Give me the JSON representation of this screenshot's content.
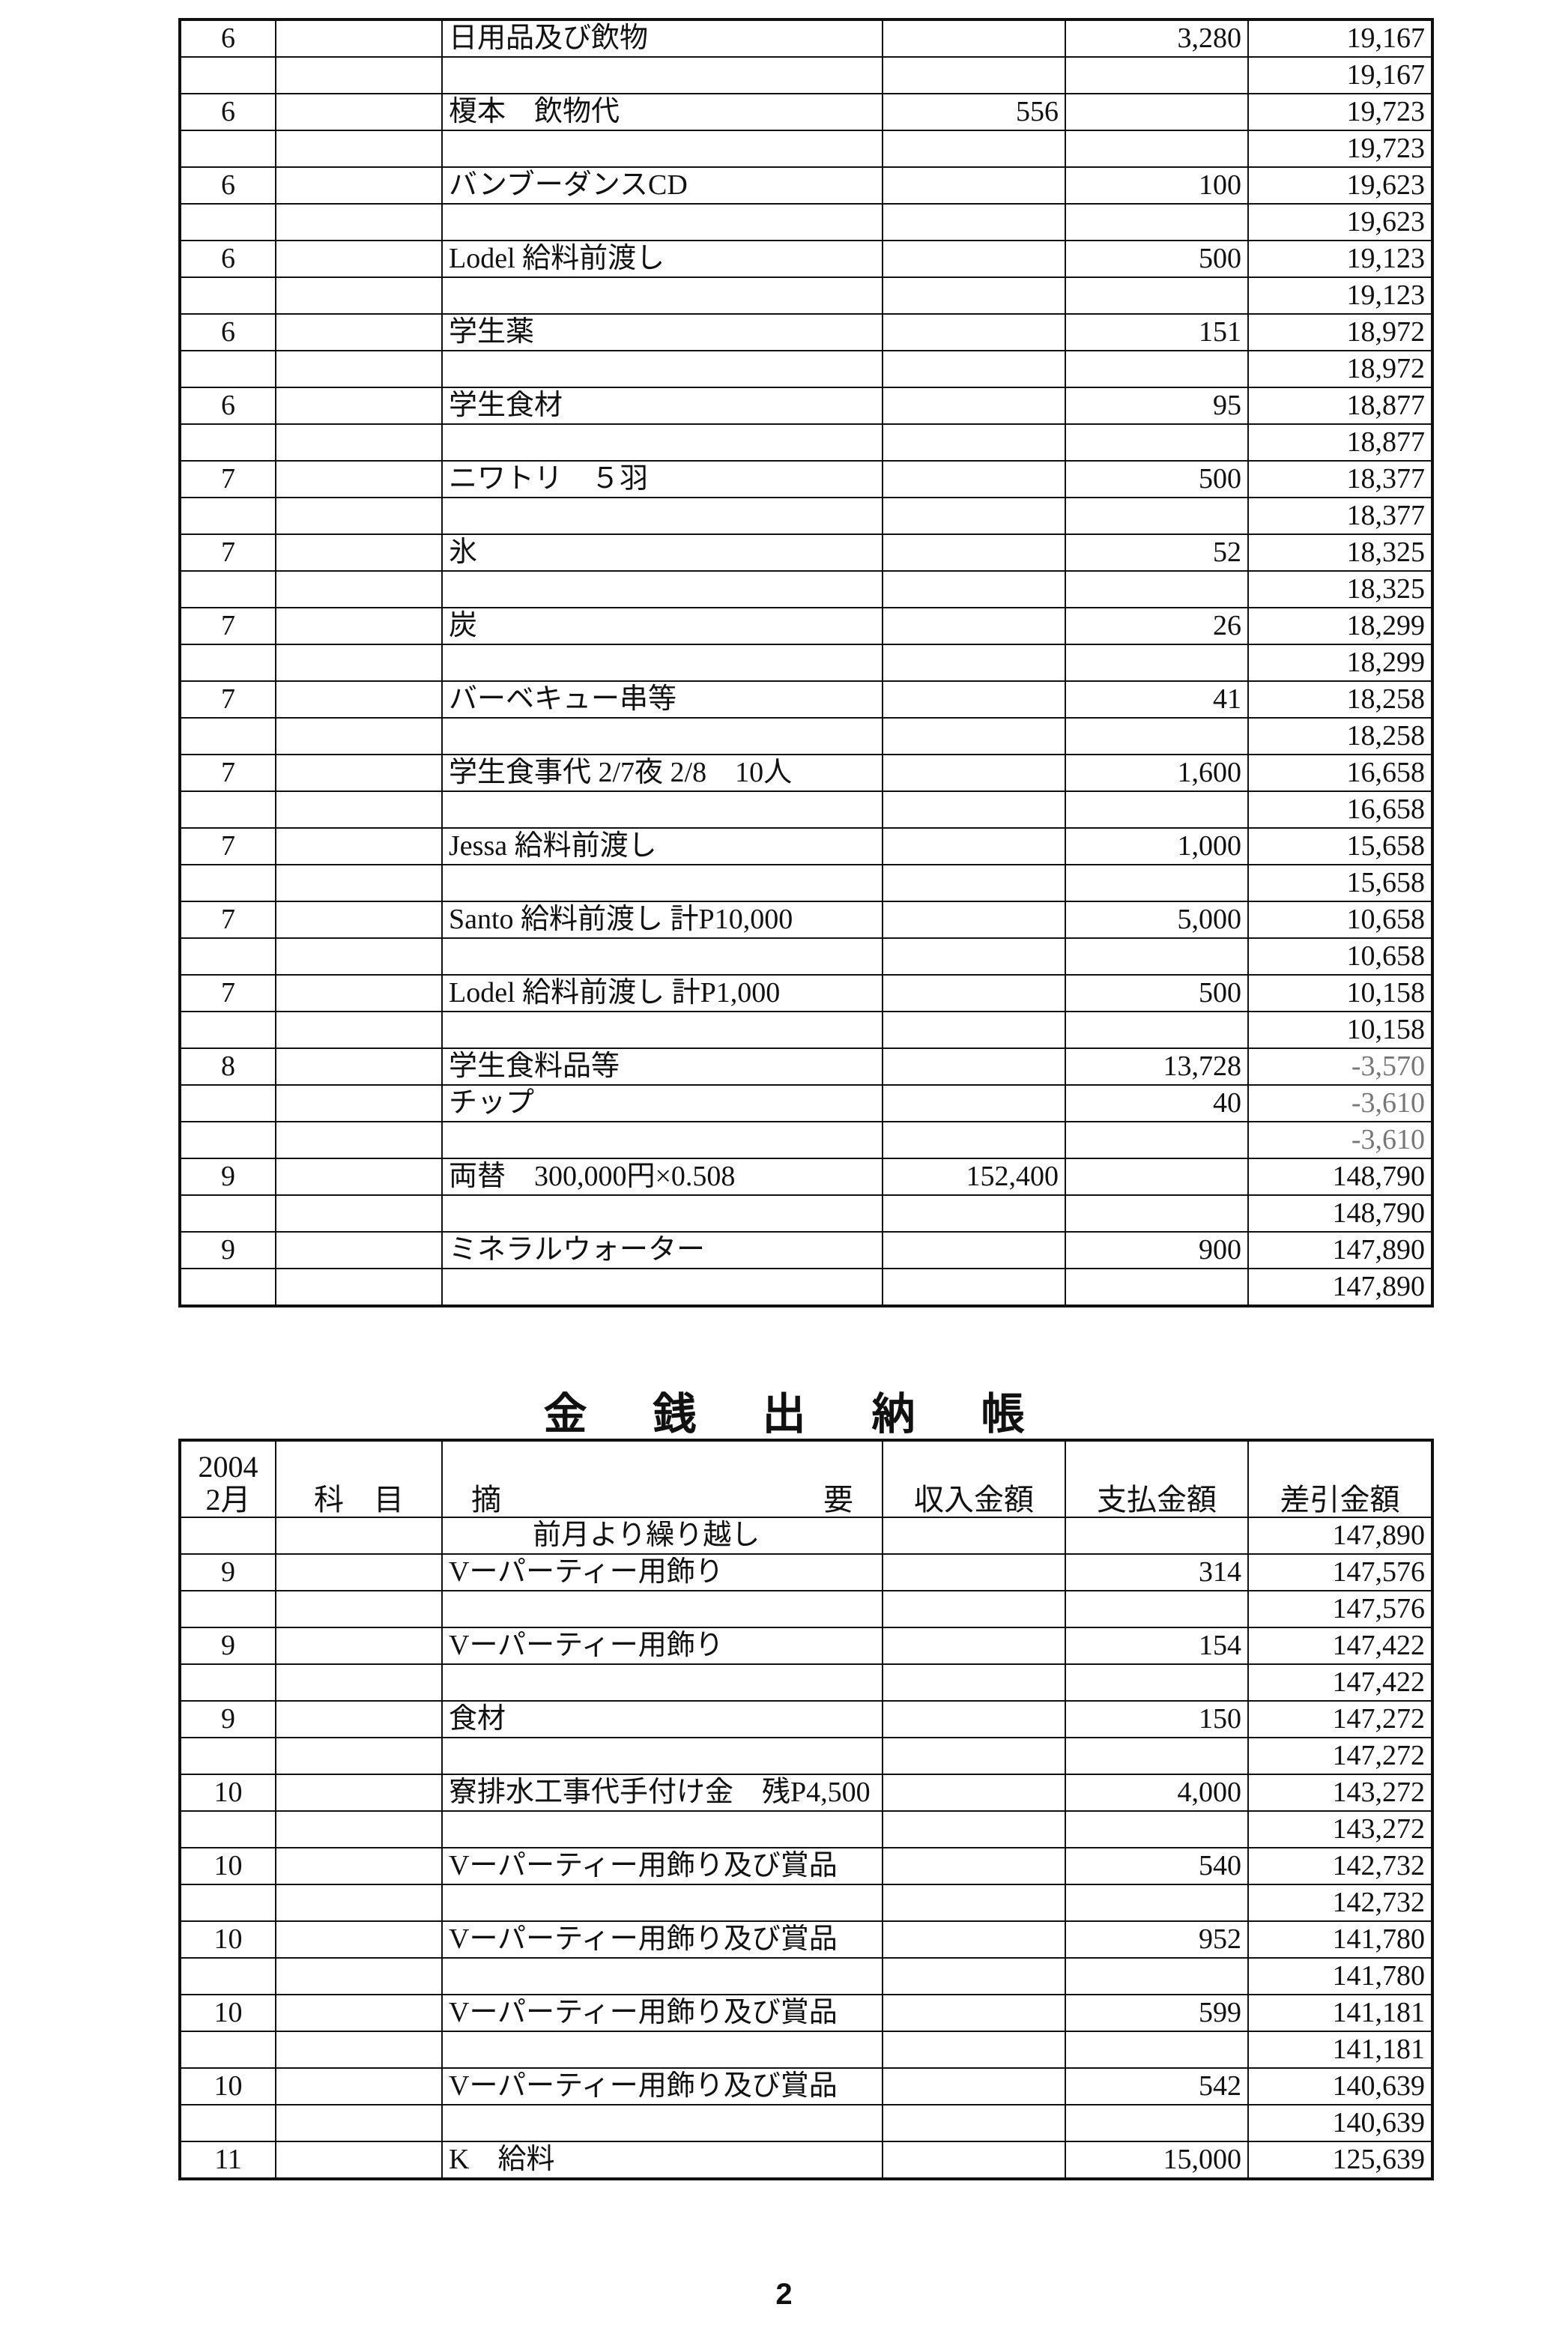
{
  "ledger_top": {
    "rows": [
      {
        "day": "6",
        "desc": "日用品及び飲物",
        "payment": "3,280",
        "balance": "19,167"
      },
      {
        "balance": "19,167"
      },
      {
        "day": "6",
        "desc": "榎本　飲物代",
        "income": "556",
        "balance": "19,723"
      },
      {
        "balance": "19,723"
      },
      {
        "day": "6",
        "desc": "バンブーダンスCD",
        "payment": "100",
        "balance": "19,623"
      },
      {
        "balance": "19,623"
      },
      {
        "day": "6",
        "desc": "Lodel 給料前渡し",
        "payment": "500",
        "balance": "19,123"
      },
      {
        "balance": "19,123"
      },
      {
        "day": "6",
        "desc": "学生薬",
        "payment": "151",
        "balance": "18,972"
      },
      {
        "balance": "18,972"
      },
      {
        "day": "6",
        "desc": "学生食材",
        "payment": "95",
        "balance": "18,877"
      },
      {
        "balance": "18,877"
      },
      {
        "day": "7",
        "desc": "ニワトリ　５羽",
        "payment": "500",
        "balance": "18,377"
      },
      {
        "balance": "18,377"
      },
      {
        "day": "7",
        "desc": "氷",
        "payment": "52",
        "balance": "18,325"
      },
      {
        "balance": "18,325"
      },
      {
        "day": "7",
        "desc": "炭",
        "payment": "26",
        "balance": "18,299"
      },
      {
        "balance": "18,299"
      },
      {
        "day": "7",
        "desc": "バーベキュー串等",
        "payment": "41",
        "balance": "18,258"
      },
      {
        "balance": "18,258"
      },
      {
        "day": "7",
        "desc": "学生食事代 2/7夜 2/8　10人",
        "payment": "1,600",
        "balance": "16,658"
      },
      {
        "balance": "16,658"
      },
      {
        "day": "7",
        "desc": "Jessa 給料前渡し",
        "payment": "1,000",
        "balance": "15,658"
      },
      {
        "balance": "15,658"
      },
      {
        "day": "7",
        "desc": "Santo 給料前渡し 計P10,000",
        "payment": "5,000",
        "balance": "10,658"
      },
      {
        "balance": "10,658"
      },
      {
        "day": "7",
        "desc": "Lodel 給料前渡し 計P1,000",
        "payment": "500",
        "balance": "10,158"
      },
      {
        "balance": "10,158"
      },
      {
        "day": "8",
        "desc": "学生食料品等",
        "payment": "13,728",
        "balance": "-3,570"
      },
      {
        "desc": "チップ",
        "payment": "40",
        "balance": "-3,610"
      },
      {
        "balance": "-3,610"
      },
      {
        "day": "9",
        "desc": "両替　300,000円×0.508",
        "income": "152,400",
        "balance": "148,790"
      },
      {
        "balance": "148,790"
      },
      {
        "day": "9",
        "desc": "ミネラルウォーター",
        "payment": "900",
        "balance": "147,890"
      },
      {
        "balance": "147,890"
      }
    ]
  },
  "title": "金銭出納帳",
  "ledger_bottom": {
    "header": {
      "year": "2004",
      "month": "2月",
      "subject": "科　目",
      "desc_left": "摘",
      "desc_right": "要",
      "income": "収入金額",
      "payment": "支払金額",
      "balance": "差引金額"
    },
    "rows": [
      {
        "carry": "前月より繰り越し",
        "balance": "147,890"
      },
      {
        "day": "9",
        "desc": "Vーパーティー用飾り",
        "payment": "314",
        "balance": "147,576"
      },
      {
        "balance": "147,576"
      },
      {
        "day": "9",
        "desc": "Vーパーティー用飾り",
        "payment": "154",
        "balance": "147,422"
      },
      {
        "balance": "147,422"
      },
      {
        "day": "9",
        "desc": "食材",
        "payment": "150",
        "balance": "147,272"
      },
      {
        "balance": "147,272"
      },
      {
        "day": "10",
        "desc": "寮排水工事代手付け金　残P4,500",
        "payment": "4,000",
        "balance": "143,272"
      },
      {
        "balance": "143,272"
      },
      {
        "day": "10",
        "desc": "Vーパーティー用飾り及び賞品",
        "payment": "540",
        "balance": "142,732"
      },
      {
        "balance": "142,732"
      },
      {
        "day": "10",
        "desc": "Vーパーティー用飾り及び賞品",
        "payment": "952",
        "balance": "141,780"
      },
      {
        "balance": "141,780"
      },
      {
        "day": "10",
        "desc": "Vーパーティー用飾り及び賞品",
        "payment": "599",
        "balance": "141,181"
      },
      {
        "balance": "141,181"
      },
      {
        "day": "10",
        "desc": "Vーパーティー用飾り及び賞品",
        "payment": "542",
        "balance": "140,639"
      },
      {
        "balance": "140,639"
      },
      {
        "day": "11",
        "desc": "K　給料",
        "payment": "15,000",
        "balance": "125,639"
      }
    ]
  },
  "page_number": "2"
}
